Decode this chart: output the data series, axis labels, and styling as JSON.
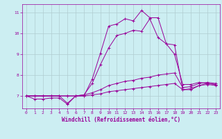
{
  "xlabel": "Windchill (Refroidissement éolien,°C)",
  "background_color": "#cceef2",
  "line_color": "#990099",
  "grid_color": "#b0ccd0",
  "xlim": [
    -0.5,
    23.5
  ],
  "ylim": [
    6.4,
    11.4
  ],
  "yticks": [
    7,
    8,
    9,
    10,
    11
  ],
  "xticks": [
    0,
    1,
    2,
    3,
    4,
    5,
    6,
    7,
    8,
    9,
    10,
    11,
    12,
    13,
    14,
    15,
    16,
    17,
    18,
    19,
    20,
    21,
    22,
    23
  ],
  "series": [
    {
      "x": [
        0,
        1,
        2,
        3,
        4,
        5,
        6,
        7,
        8,
        9,
        10,
        11,
        12,
        13,
        14,
        15,
        16,
        17,
        18,
        19,
        20,
        21,
        22,
        23
      ],
      "y": [
        7.0,
        7.0,
        7.0,
        7.0,
        7.0,
        6.65,
        7.0,
        7.0,
        7.8,
        9.05,
        10.35,
        10.45,
        10.7,
        10.6,
        11.1,
        10.75,
        10.75,
        9.5,
        9.0,
        7.55,
        7.55,
        7.65,
        7.6,
        7.55
      ]
    },
    {
      "x": [
        0,
        1,
        2,
        3,
        4,
        5,
        6,
        7,
        8,
        9,
        10,
        11,
        12,
        13,
        14,
        15,
        16,
        17,
        18,
        19,
        20,
        21,
        22,
        23
      ],
      "y": [
        7.0,
        6.85,
        6.85,
        6.9,
        6.9,
        6.6,
        7.0,
        7.05,
        7.6,
        8.5,
        9.3,
        9.9,
        10.0,
        10.15,
        10.1,
        10.7,
        9.8,
        9.5,
        9.45,
        7.3,
        7.3,
        7.5,
        7.6,
        7.55
      ]
    },
    {
      "x": [
        0,
        1,
        2,
        3,
        4,
        5,
        6,
        7,
        8,
        9,
        10,
        11,
        12,
        13,
        14,
        15,
        16,
        17,
        18,
        19,
        20,
        21,
        22,
        23
      ],
      "y": [
        7.0,
        7.0,
        7.0,
        7.0,
        7.0,
        7.0,
        7.0,
        7.05,
        7.15,
        7.3,
        7.5,
        7.6,
        7.7,
        7.75,
        7.85,
        7.9,
        8.0,
        8.05,
        8.1,
        7.4,
        7.45,
        7.6,
        7.65,
        7.6
      ]
    },
    {
      "x": [
        0,
        1,
        2,
        3,
        4,
        5,
        6,
        7,
        8,
        9,
        10,
        11,
        12,
        13,
        14,
        15,
        16,
        17,
        18,
        19,
        20,
        21,
        22,
        23
      ],
      "y": [
        7.0,
        7.0,
        7.0,
        7.0,
        7.0,
        7.0,
        7.0,
        7.0,
        7.05,
        7.1,
        7.2,
        7.25,
        7.3,
        7.35,
        7.4,
        7.45,
        7.5,
        7.55,
        7.6,
        7.3,
        7.35,
        7.5,
        7.55,
        7.5
      ]
    }
  ]
}
